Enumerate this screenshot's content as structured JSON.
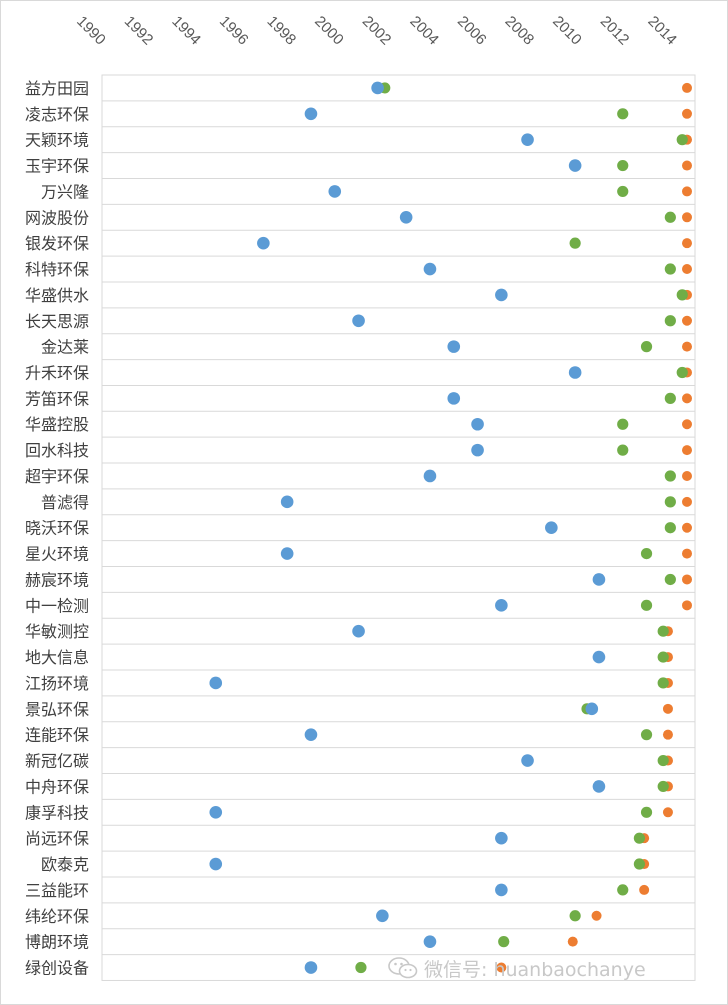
{
  "chart_data": {
    "type": "scatter",
    "title": "",
    "xlabel": "",
    "ylabel": "",
    "xlim": [
      1990,
      2015.5
    ],
    "x_ticks": [
      "1990",
      "1992",
      "1994",
      "1996",
      "1998",
      "2000",
      "2002",
      "2004",
      "2006",
      "2008",
      "2010",
      "2012",
      "2014"
    ],
    "grid": "horizontal",
    "legend": "none",
    "colors": {
      "blue": "#5b9bd5",
      "green": "#70ad47",
      "orange": "#ed7d31"
    },
    "categories": [
      "益方田园",
      "凌志环保",
      "天颖环境",
      "玉宇环保",
      "万兴隆",
      "网波股份",
      "银发环保",
      "科特环保",
      "华盛供水",
      "长天思源",
      "金达莱",
      "升禾环保",
      "芳笛环保",
      "华盛控股",
      "回水科技",
      "超宇环保",
      "普滤得",
      "晓沃环保",
      "星火环境",
      "赫宸环境",
      "中一检测",
      "华敏测控",
      "地大信息",
      "江扬环境",
      "景弘环保",
      "连能环保",
      "新冠亿碳",
      "中舟环保",
      "康孚科技",
      "尚远环保",
      "欧泰克",
      "三益能环",
      "纬纶环保",
      "博朗环境",
      "绿创设备"
    ],
    "series": [
      {
        "color": "orange",
        "values": [
          2015.0,
          2015.0,
          2015.0,
          2015.0,
          2015.0,
          2015.0,
          2015.0,
          2015.0,
          2015.0,
          2015.0,
          2015.0,
          2015.0,
          2015.0,
          2015.0,
          2015.0,
          2015.0,
          2015.0,
          2015.0,
          2015.0,
          2015.0,
          2015.0,
          2014.2,
          2014.2,
          2014.2,
          2014.2,
          2014.2,
          2014.2,
          2014.2,
          2014.2,
          2013.2,
          2013.2,
          2013.2,
          2011.2,
          2010.2,
          2007.2
        ]
      },
      {
        "color": "green",
        "values": [
          2002.3,
          2012.3,
          2014.8,
          2012.3,
          2012.3,
          2014.3,
          2010.3,
          2014.3,
          2014.8,
          2014.3,
          2013.3,
          2014.8,
          2014.3,
          2012.3,
          2012.3,
          2014.3,
          2014.3,
          2014.3,
          2013.3,
          2014.3,
          2013.3,
          2014.0,
          2014.0,
          2014.0,
          2010.8,
          2013.3,
          2014.0,
          2014.0,
          2013.3,
          2013.0,
          2013.0,
          2012.3,
          2010.3,
          2007.3,
          2001.3
        ]
      },
      {
        "color": "blue",
        "values": [
          2002.0,
          1999.2,
          2008.3,
          2010.3,
          2000.2,
          2003.2,
          1997.2,
          2004.2,
          2007.2,
          2001.2,
          2005.2,
          2010.3,
          2005.2,
          2006.2,
          2006.2,
          2004.2,
          1998.2,
          2009.3,
          1998.2,
          2011.3,
          2007.2,
          2001.2,
          2011.3,
          1995.2,
          2011.0,
          1999.2,
          2008.3,
          2011.3,
          1995.2,
          2007.2,
          1995.2,
          2007.2,
          2002.2,
          2004.2,
          1999.2
        ]
      }
    ]
  },
  "watermark": {
    "text": "微信号: huanbaochanye",
    "icon": "wechat-icon"
  }
}
